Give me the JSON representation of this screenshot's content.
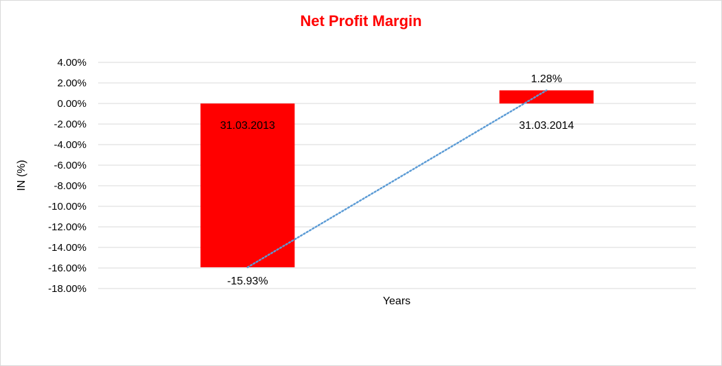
{
  "chart_data": {
    "type": "bar",
    "title": "Net Profit Margin",
    "xlabel": "Years",
    "ylabel": "IN (%)",
    "categories": [
      "31.03.2013",
      "31.03.2014"
    ],
    "values": [
      -15.93,
      1.28
    ],
    "value_labels": [
      "-15.93%",
      "1.28%"
    ],
    "ylim": [
      -18,
      4
    ],
    "ytick_step": 2,
    "yticks": [
      "4.00%",
      "2.00%",
      "0.00%",
      "-2.00%",
      "-4.00%",
      "-6.00%",
      "-8.00%",
      "-10.00%",
      "-12.00%",
      "-14.00%",
      "-16.00%",
      "-18.00%"
    ],
    "grid": true,
    "trendline": "linear",
    "bar_color": "#ff0000",
    "title_color": "#ff0000",
    "trendline_color": "#5b9bd5",
    "grid_color": "#d9d9d9"
  }
}
